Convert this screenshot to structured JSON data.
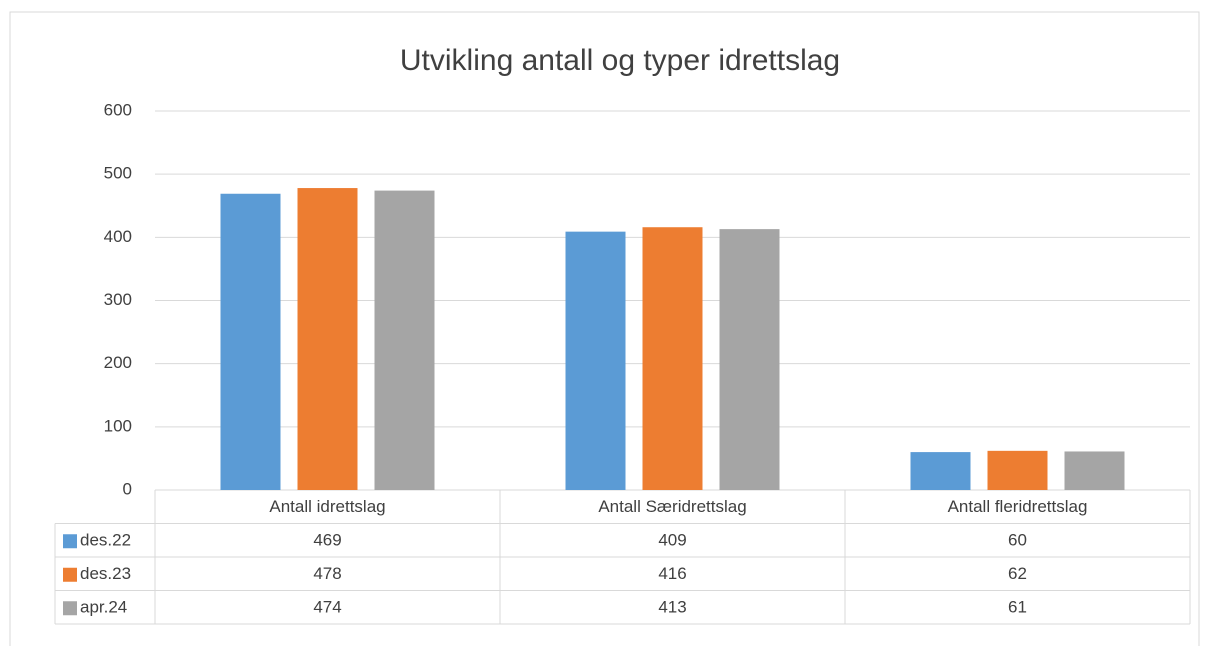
{
  "chart_data": {
    "type": "bar",
    "title": "Utvikling antall og typer idrettslag",
    "categories": [
      "Antall idrettslag",
      "Antall Særidrettslag",
      "Antall fleridrettslag"
    ],
    "series": [
      {
        "name": "des.22",
        "color": "#5b9bd5",
        "values": [
          469,
          409,
          60
        ]
      },
      {
        "name": "des.23",
        "color": "#ed7d31",
        "values": [
          478,
          416,
          62
        ]
      },
      {
        "name": "apr.24",
        "color": "#a5a5a5",
        "values": [
          474,
          413,
          61
        ]
      }
    ],
    "ylim": [
      0,
      600
    ],
    "yticks": [
      0,
      100,
      200,
      300,
      400,
      500,
      600
    ],
    "grid": true,
    "data_table": true
  }
}
